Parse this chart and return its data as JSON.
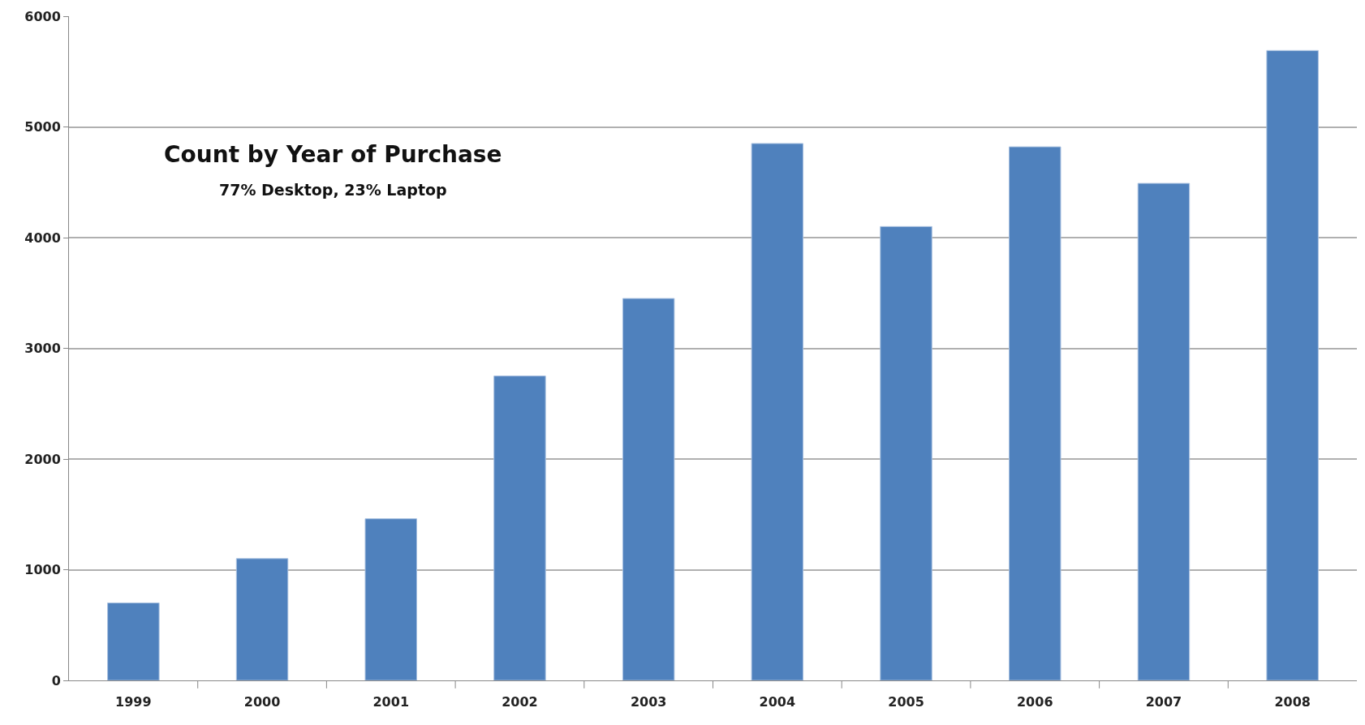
{
  "chart_data": {
    "type": "bar",
    "title": "Count by Year of Purchase",
    "subtitle": "77% Desktop, 23% Laptop",
    "categories": [
      "1999",
      "2000",
      "2001",
      "2002",
      "2003",
      "2004",
      "2005",
      "2006",
      "2007",
      "2008"
    ],
    "values": [
      700,
      1100,
      1460,
      2750,
      3450,
      4850,
      4100,
      4820,
      4490,
      5690
    ],
    "color": "#4f81bd",
    "ylim": [
      0,
      6000
    ],
    "yticks": [
      0,
      1000,
      2000,
      3000,
      4000,
      5000,
      6000
    ],
    "grid": "y"
  }
}
